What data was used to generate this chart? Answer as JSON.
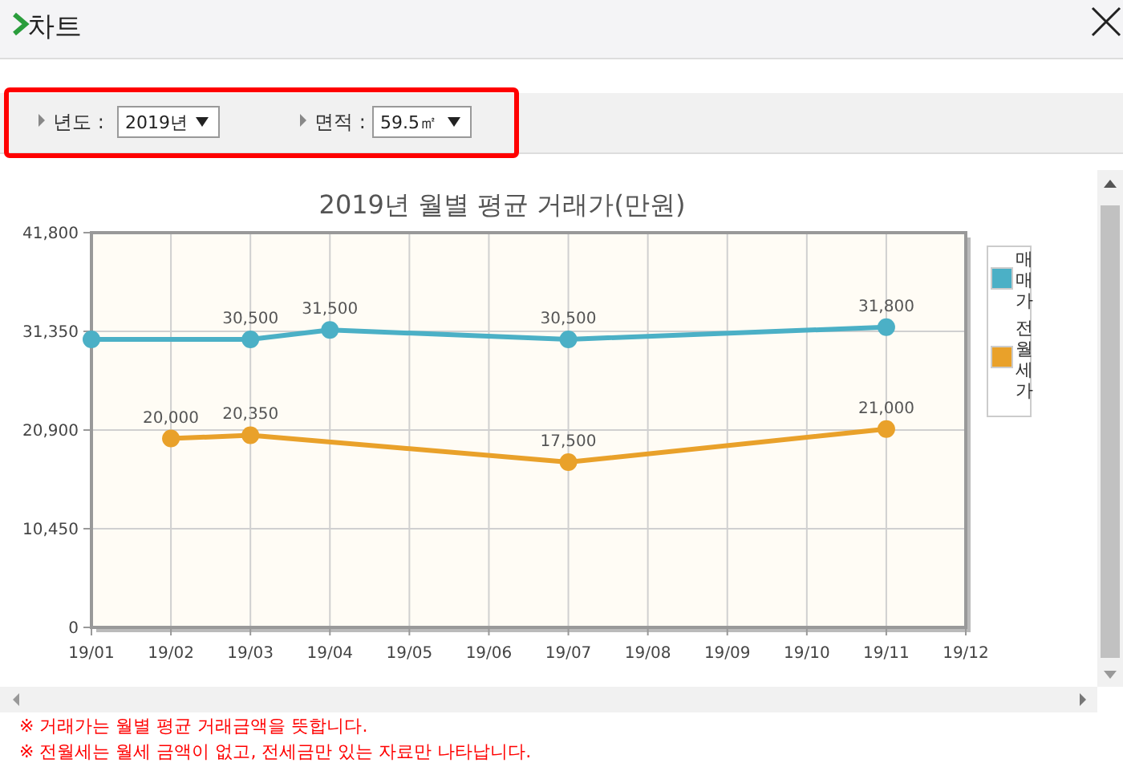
{
  "chart_data": {
    "type": "line",
    "title": "2019년 월별 평균 거래가(만원)",
    "categories": [
      "19/01",
      "19/02",
      "19/03",
      "19/04",
      "19/05",
      "19/06",
      "19/07",
      "19/08",
      "19/09",
      "19/10",
      "19/11",
      "19/12"
    ],
    "series": [
      {
        "name": "매매가",
        "color": "#4bb0c6",
        "values": [
          30500,
          null,
          30500,
          31500,
          null,
          null,
          30500,
          null,
          null,
          null,
          31800,
          null
        ],
        "value_labels": [
          null,
          null,
          "30,500",
          "31,500",
          null,
          null,
          "30,500",
          null,
          null,
          null,
          "31,800",
          null
        ]
      },
      {
        "name": "전월세가",
        "color": "#e9a12a",
        "values": [
          null,
          20000,
          20350,
          null,
          null,
          null,
          17500,
          null,
          null,
          null,
          21000,
          null
        ],
        "value_labels": [
          null,
          "20,000",
          "20,350",
          null,
          null,
          null,
          "17,500",
          null,
          null,
          null,
          "21,000",
          null
        ]
      }
    ],
    "ylim": [
      0,
      41800
    ],
    "yticks": [
      {
        "value": 0,
        "label": "0"
      },
      {
        "value": 10450,
        "label": "10,450"
      },
      {
        "value": 20900,
        "label": "20,900"
      },
      {
        "value": 31350,
        "label": "31,350"
      },
      {
        "value": 41800,
        "label": "41,800"
      }
    ],
    "grid": true,
    "legend": "right",
    "marker": "circle",
    "line_style": "solid",
    "annotations": [
      "차트",
      "년도 :",
      "2019년",
      "면적 :",
      "59.5㎡",
      "※ 거래가는 월별 평균 거래금액을 뜻합니다.",
      "※ 전월세는 월세 금액이 없고, 전세금만 있는 자료만 나타납니다."
    ]
  }
}
